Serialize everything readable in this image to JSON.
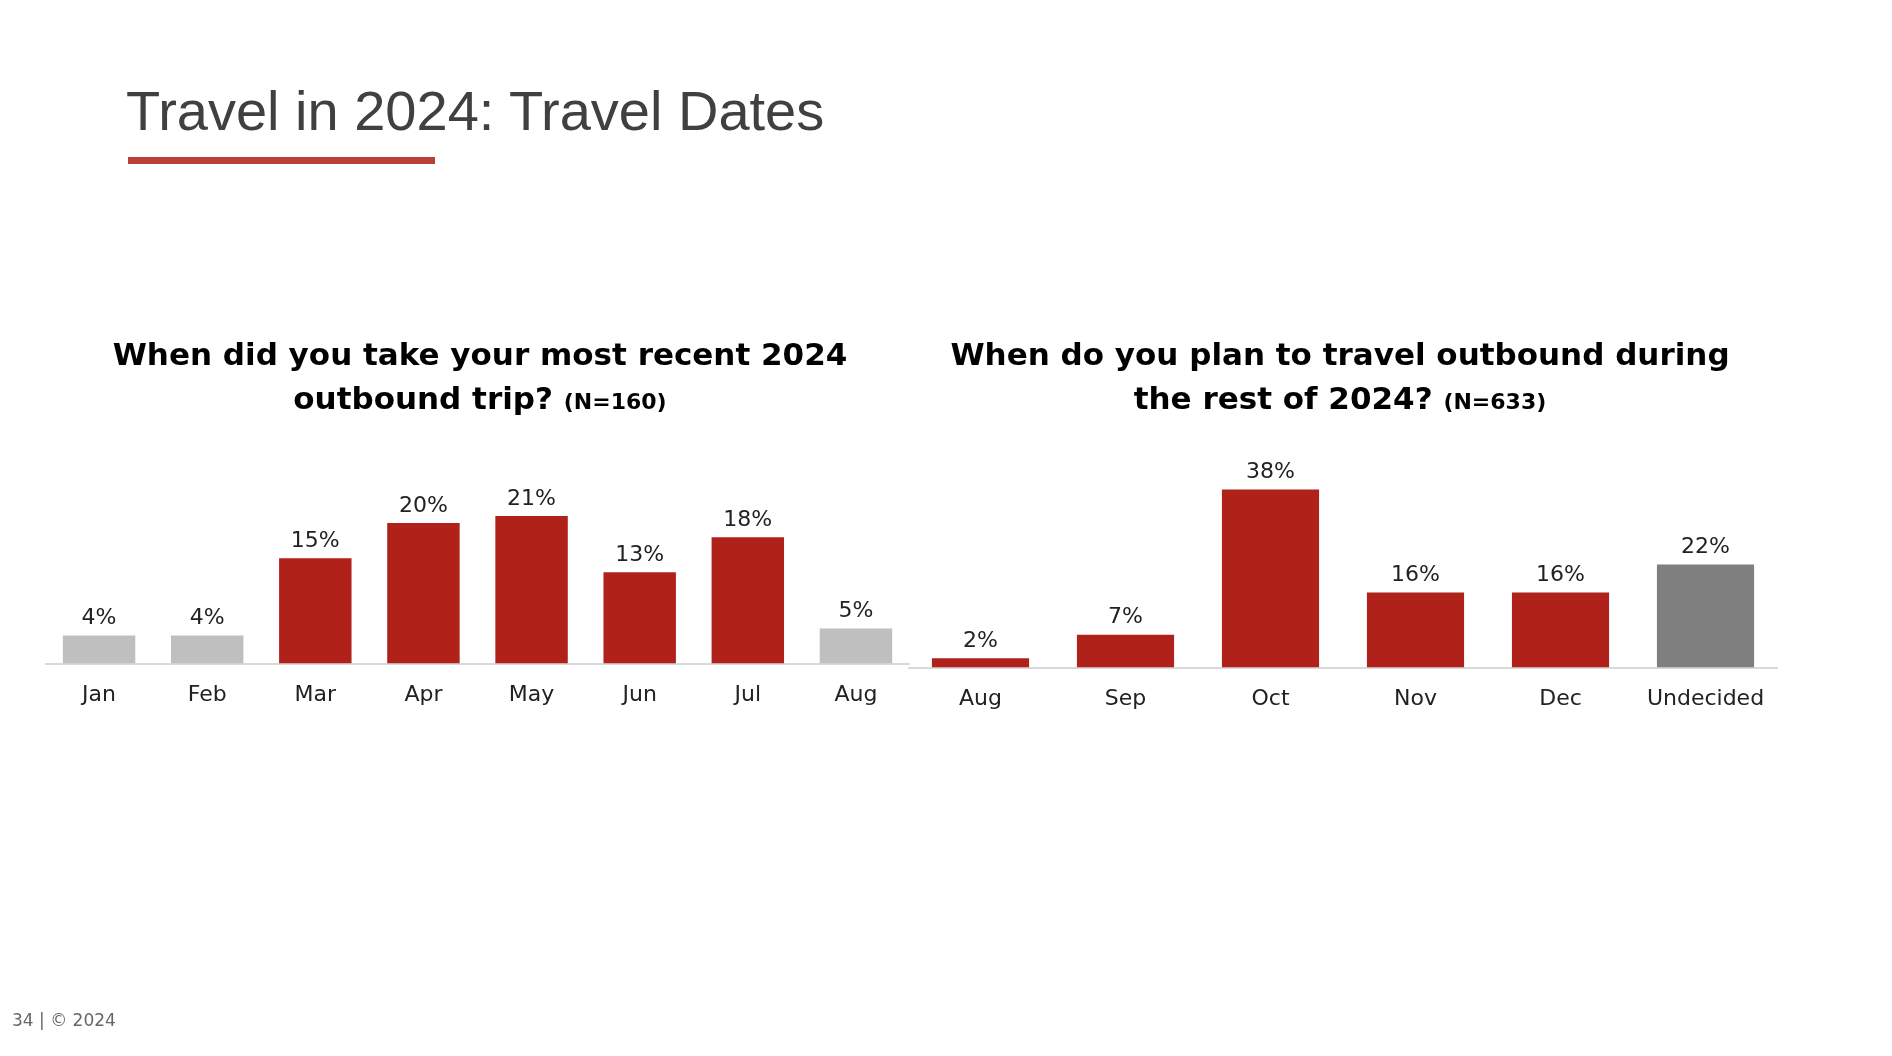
{
  "chart_data": [
    {
      "type": "bar",
      "title": "When did you take your most recent 2024 outbound trip?",
      "subtitle": "(N=160)",
      "annotations": [
        "Travel in 2024: Travel Dates"
      ],
      "categories": [
        "Jan",
        "Feb",
        "Mar",
        "Apr",
        "May",
        "Jun",
        "Jul",
        "Aug"
      ],
      "values": [
        4,
        4,
        15,
        20,
        21,
        13,
        18,
        5
      ],
      "colors": [
        "#bfbfbf",
        "#bfbfbf",
        "#b0211a",
        "#b0211a",
        "#b0211a",
        "#b0211a",
        "#b0211a",
        "#bfbfbf"
      ],
      "value_labels": [
        "4%",
        "4%",
        "15%",
        "20%",
        "21%",
        "13%",
        "18%",
        "5%"
      ]
    },
    {
      "type": "bar",
      "title": "When do you plan to travel outbound during the rest of 2024?",
      "subtitle": "(N=633)",
      "annotations": [
        "34  |  © 2024"
      ],
      "categories": [
        "Aug",
        "Sep",
        "Oct",
        "Nov",
        "Dec",
        "Undecided"
      ],
      "values": [
        2,
        7,
        38,
        16,
        16,
        22
      ],
      "colors": [
        "#b0211a",
        "#b0211a",
        "#b0211a",
        "#b0211a",
        "#b0211a",
        "#7f7f7f"
      ],
      "value_labels": [
        "2%",
        "7%",
        "38%",
        "16%",
        "16%",
        "22%"
      ]
    }
  ]
}
